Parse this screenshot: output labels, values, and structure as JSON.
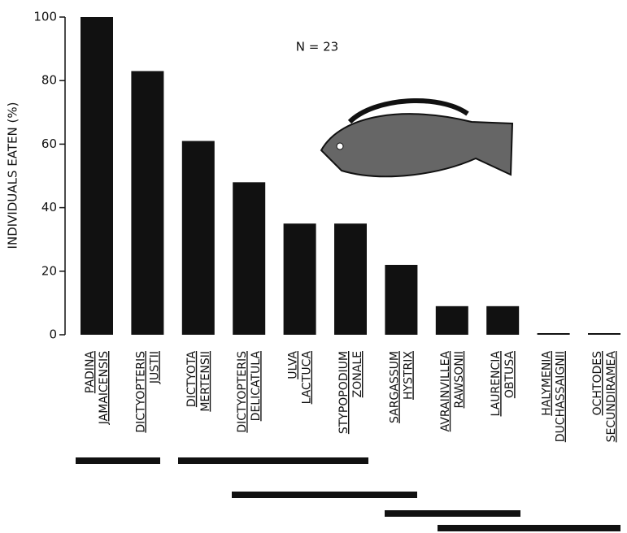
{
  "chart_data": {
    "type": "bar",
    "annotation": "N = 23",
    "y_label": "INDIVIDUALS EATEN (%)",
    "categories": [
      [
        "PADINA",
        "JAMAICENSIS"
      ],
      [
        "DICTYOPTERIS",
        "JUSTII"
      ],
      [
        "DICTYOTA",
        "MERTENSII"
      ],
      [
        "DICTYOPTERIS",
        "DELICATULA"
      ],
      [
        "ULVA",
        "LACTUCA"
      ],
      [
        "STYPOPODIUM",
        "ZONALE"
      ],
      [
        "SARGASSUM",
        "HYSTRIX"
      ],
      [
        "AVRAINVILLEA",
        "RAWSONII"
      ],
      [
        "LAURENCIA",
        "OBTUSA"
      ],
      [
        "HALYMENIA",
        "DUCHASSAIGNII"
      ],
      [
        "OCHTODES",
        "SECUNDIRAMEA"
      ]
    ],
    "values": [
      100,
      83,
      61,
      48,
      35,
      35,
      22,
      9,
      9,
      0,
      0
    ],
    "color": "#111111",
    "ylim": [
      0,
      100
    ],
    "yticks": [
      0,
      20,
      40,
      60,
      80,
      100
    ],
    "grid": false
  }
}
